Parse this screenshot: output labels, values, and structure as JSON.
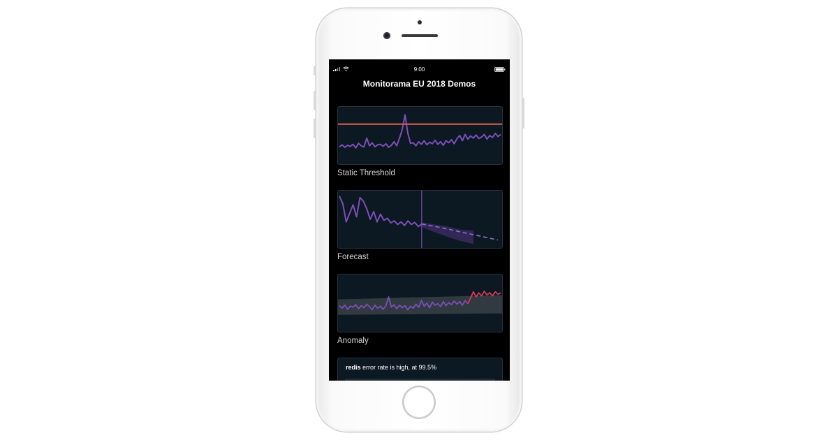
{
  "status_bar": {
    "time": "9:00",
    "signal_icon": "signal-icon",
    "wifi_icon": "wifi-icon",
    "battery_icon": "battery-icon"
  },
  "app": {
    "title": "Monitorama EU 2018 Demos"
  },
  "colors": {
    "card_bg": "#0c1822",
    "series": "#7b4fb8",
    "threshold": "#e0604f",
    "anomaly": "#d63a57",
    "band": "#3b4349"
  },
  "cards": [
    {
      "label": "Static Threshold",
      "chart_data": {
        "type": "line",
        "threshold": 0.72,
        "values": [
          0.28,
          0.32,
          0.27,
          0.31,
          0.29,
          0.33,
          0.26,
          0.35,
          0.3,
          0.28,
          0.45,
          0.3,
          0.36,
          0.28,
          0.32,
          0.33,
          0.29,
          0.34,
          0.27,
          0.31,
          0.38,
          0.3,
          0.45,
          0.62,
          0.9,
          0.55,
          0.35,
          0.36,
          0.3,
          0.38,
          0.33,
          0.4,
          0.32,
          0.37,
          0.34,
          0.41,
          0.33,
          0.38,
          0.31,
          0.4,
          0.36,
          0.42,
          0.34,
          0.44,
          0.5,
          0.4,
          0.52,
          0.43,
          0.49,
          0.45,
          0.51,
          0.44,
          0.47,
          0.52,
          0.43,
          0.5,
          0.46,
          0.54,
          0.48,
          0.52
        ]
      }
    },
    {
      "label": "Forecast",
      "chart_data": {
        "type": "line",
        "split": 0.51,
        "values": [
          0.95,
          0.8,
          0.45,
          0.62,
          0.78,
          0.55,
          0.92,
          0.85,
          0.7,
          0.5,
          0.65,
          0.45,
          0.6,
          0.48,
          0.52,
          0.43,
          0.47,
          0.4,
          0.45,
          0.38,
          0.47,
          0.4,
          0.44,
          0.36,
          0.41
        ],
        "forecast": [
          0.41,
          0.34,
          0.26,
          0.18,
          0.1
        ],
        "band_upper": [
          0.44,
          0.4,
          0.36,
          0.3,
          0.28
        ],
        "band_lower": [
          0.35,
          0.25,
          0.16,
          0.08,
          0.02
        ]
      }
    },
    {
      "label": "Anomaly",
      "chart_data": {
        "type": "line",
        "band_upper": 0.6,
        "band_lower": 0.3,
        "anomaly_start": 47,
        "values": [
          0.45,
          0.4,
          0.46,
          0.38,
          0.44,
          0.42,
          0.47,
          0.39,
          0.45,
          0.41,
          0.48,
          0.43,
          0.37,
          0.46,
          0.4,
          0.44,
          0.38,
          0.45,
          0.62,
          0.42,
          0.47,
          0.39,
          0.46,
          0.41,
          0.45,
          0.37,
          0.44,
          0.4,
          0.48,
          0.42,
          0.55,
          0.44,
          0.5,
          0.41,
          0.52,
          0.46,
          0.49,
          0.43,
          0.53,
          0.45,
          0.51,
          0.47,
          0.54,
          0.48,
          0.53,
          0.46,
          0.55,
          0.49,
          0.6,
          0.72,
          0.62,
          0.7,
          0.64,
          0.73,
          0.66,
          0.7,
          0.64,
          0.72,
          0.67,
          0.7
        ]
      }
    }
  ],
  "alert": {
    "service": "redis",
    "message": " error rate is high, at 99.5%"
  }
}
